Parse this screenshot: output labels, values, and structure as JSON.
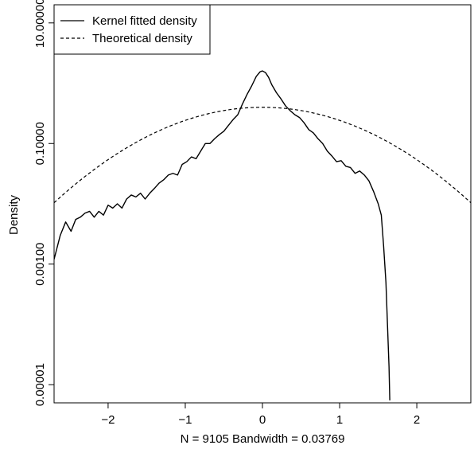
{
  "chart_data": {
    "type": "line",
    "title": "",
    "xlabel": "N = 9105   Bandwidth = 0.03769",
    "ylabel": "Density",
    "xlim": [
      -2.7,
      2.7
    ],
    "ylim": [
      5e-06,
      20
    ],
    "y_scale": "log",
    "grid": false,
    "legend_position": "top-left",
    "x_ticks": [
      -2,
      -1,
      0,
      1,
      2
    ],
    "x_tick_labels": [
      "−2",
      "−1",
      "0",
      "1",
      "2"
    ],
    "y_ticks": [
      1e-05,
      0.001,
      0.1,
      10
    ],
    "y_tick_labels": [
      "0.00001",
      "0.00100",
      "0.10000",
      "10.00000"
    ],
    "series": [
      {
        "name": "Kernel fitted density",
        "line_style": "solid",
        "color": "#000000",
        "x": [
          -2.7,
          -2.62,
          -2.55,
          -2.48,
          -2.42,
          -2.36,
          -2.3,
          -2.24,
          -2.18,
          -2.12,
          -2.06,
          -2.0,
          -1.94,
          -1.88,
          -1.82,
          -1.76,
          -1.7,
          -1.64,
          -1.58,
          -1.52,
          -1.46,
          -1.4,
          -1.34,
          -1.28,
          -1.22,
          -1.16,
          -1.1,
          -1.04,
          -0.98,
          -0.92,
          -0.86,
          -0.8,
          -0.74,
          -0.68,
          -0.62,
          -0.56,
          -0.5,
          -0.44,
          -0.38,
          -0.32,
          -0.26,
          -0.2,
          -0.14,
          -0.08,
          -0.03,
          0.0,
          0.04,
          0.08,
          0.12,
          0.18,
          0.24,
          0.3,
          0.36,
          0.42,
          0.48,
          0.54,
          0.6,
          0.66,
          0.72,
          0.78,
          0.84,
          0.9,
          0.96,
          1.02,
          1.08,
          1.14,
          1.2,
          1.26,
          1.32,
          1.38,
          1.44,
          1.5,
          1.54,
          1.57,
          1.6,
          1.62,
          1.64,
          1.65
        ],
        "y": [
          0.0012,
          0.003,
          0.005,
          0.0035,
          0.0055,
          0.006,
          0.007,
          0.0075,
          0.006,
          0.0075,
          0.0065,
          0.0095,
          0.0085,
          0.01,
          0.0085,
          0.012,
          0.014,
          0.013,
          0.015,
          0.012,
          0.015,
          0.018,
          0.022,
          0.025,
          0.03,
          0.032,
          0.03,
          0.045,
          0.05,
          0.06,
          0.056,
          0.075,
          0.1,
          0.1,
          0.12,
          0.14,
          0.16,
          0.2,
          0.25,
          0.3,
          0.45,
          0.65,
          0.9,
          1.3,
          1.55,
          1.6,
          1.5,
          1.25,
          0.95,
          0.7,
          0.55,
          0.42,
          0.35,
          0.3,
          0.27,
          0.22,
          0.17,
          0.15,
          0.12,
          0.1,
          0.075,
          0.062,
          0.05,
          0.052,
          0.042,
          0.04,
          0.032,
          0.035,
          0.03,
          0.024,
          0.016,
          0.01,
          0.0065,
          0.002,
          0.0005,
          0.0001,
          2e-05,
          5.5e-06
        ]
      },
      {
        "name": "Theoretical density",
        "line_style": "dashed",
        "color": "#000000",
        "function": "standard normal pdf, 1/sqrt(2*pi)*exp(-x^2/2)",
        "x_range": [
          -2.7,
          2.7
        ]
      }
    ]
  }
}
